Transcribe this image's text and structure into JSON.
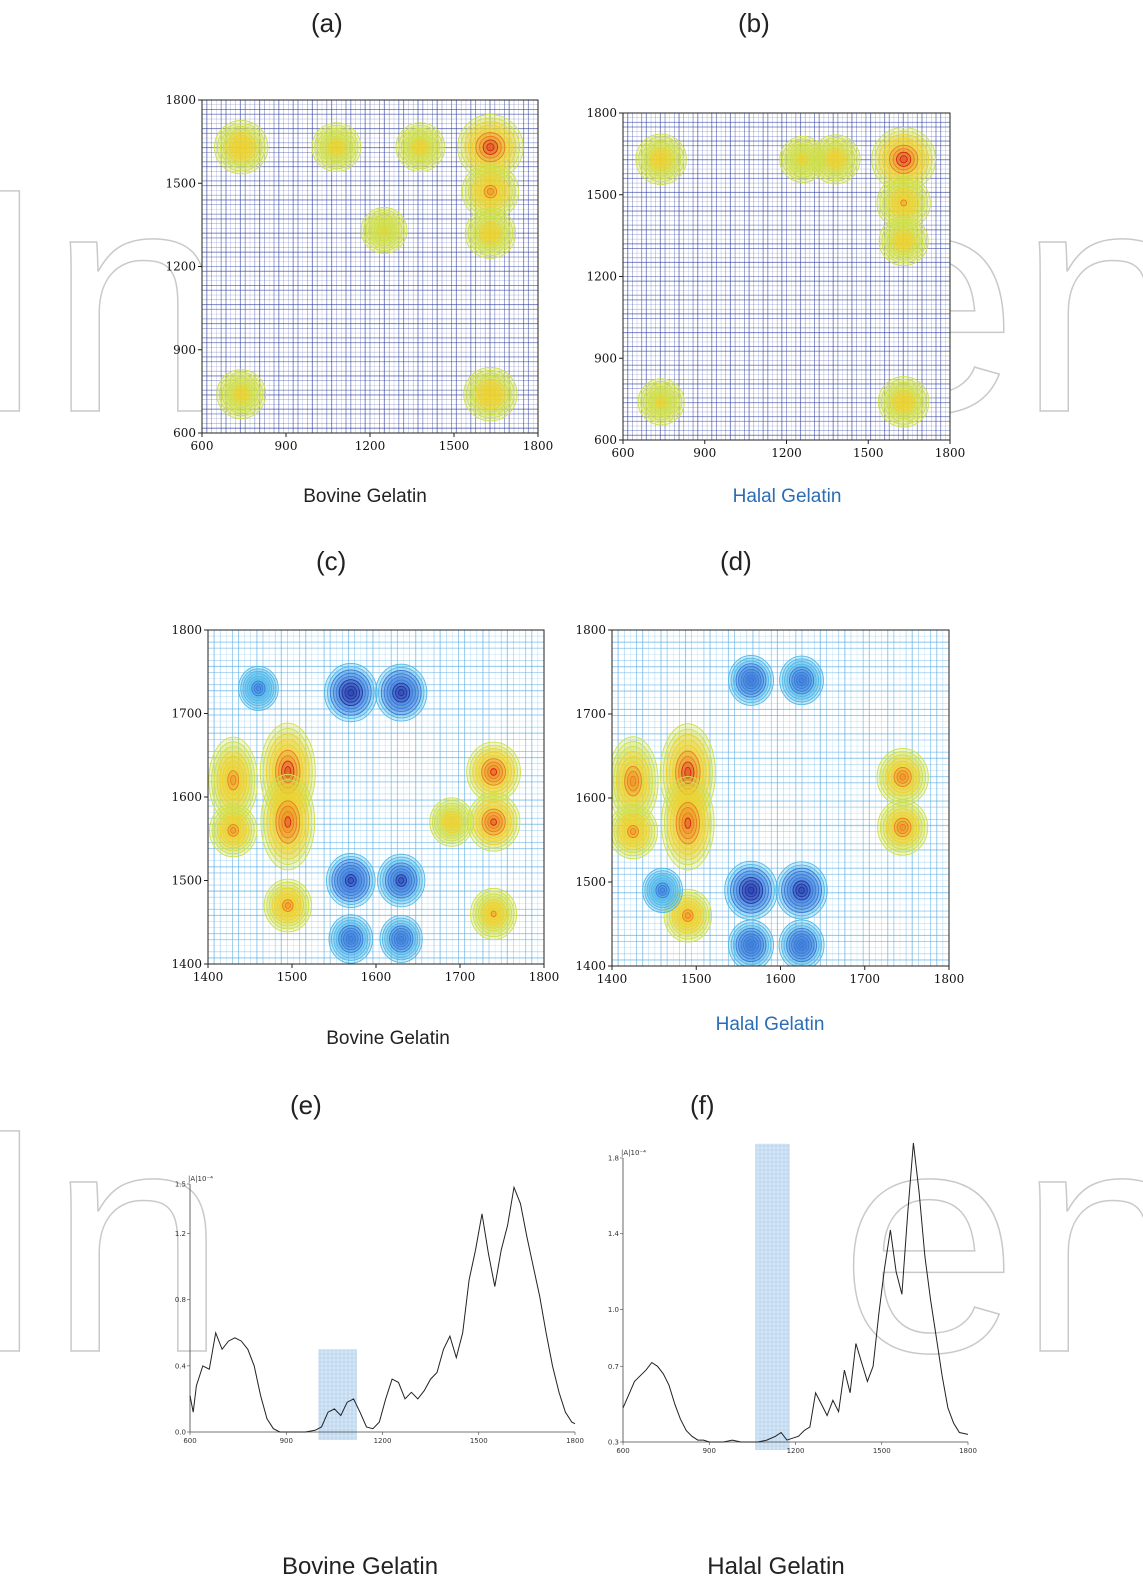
{
  "panels": {
    "a": {
      "letter": "(a)",
      "caption": "Bovine Gelatin"
    },
    "b": {
      "letter": "(b)",
      "caption": "Halal Gelatin"
    },
    "c": {
      "letter": "(c)",
      "caption": "Bovine Gelatin"
    },
    "d": {
      "letter": "(d)",
      "caption": "Halal Gelatin"
    },
    "e": {
      "letter": "(e)",
      "caption": "Bovine Gelatin"
    },
    "f": {
      "letter": "(f)",
      "caption": "Halal Gelatin"
    }
  },
  "chart_data": [
    {
      "id": "a",
      "type": "heatmap",
      "xlim": [
        600,
        1800
      ],
      "ylim": [
        600,
        1800
      ],
      "xticks": [
        600,
        900,
        1200,
        1500,
        1800
      ],
      "yticks": [
        600,
        900,
        1200,
        1500,
        1800
      ],
      "peaks": [
        [
          1630,
          1630,
          1.0
        ],
        [
          1630,
          1470,
          0.7
        ],
        [
          1630,
          740,
          0.6
        ],
        [
          740,
          1630,
          0.6
        ],
        [
          740,
          740,
          0.45
        ],
        [
          1080,
          1630,
          0.45
        ],
        [
          1380,
          1630,
          0.45
        ],
        [
          1630,
          1320,
          0.5
        ],
        [
          1250,
          1330,
          0.35
        ]
      ]
    },
    {
      "id": "b",
      "type": "heatmap",
      "xlim": [
        600,
        1800
      ],
      "ylim": [
        600,
        1800
      ],
      "xticks": [
        600,
        900,
        1200,
        1500,
        1800
      ],
      "yticks": [
        600,
        900,
        1200,
        1500,
        1800
      ],
      "peaks": [
        [
          1630,
          1630,
          1.0
        ],
        [
          1630,
          1470,
          0.65
        ],
        [
          1630,
          1330,
          0.5
        ],
        [
          1630,
          740,
          0.55
        ],
        [
          740,
          1630,
          0.55
        ],
        [
          740,
          740,
          0.4
        ],
        [
          1380,
          1630,
          0.5
        ],
        [
          1260,
          1630,
          0.4
        ]
      ]
    },
    {
      "id": "c",
      "type": "heatmap",
      "xlim": [
        1400,
        1800
      ],
      "ylim": [
        1400,
        1800
      ],
      "xticks": [
        1400,
        1500,
        1600,
        1700,
        1800
      ],
      "yticks": [
        1400,
        1500,
        1600,
        1700,
        1800
      ],
      "peaks": [
        [
          1495,
          1630,
          1.0
        ],
        [
          1495,
          1570,
          0.95
        ],
        [
          1740,
          1630,
          0.95
        ],
        [
          1740,
          1570,
          0.9
        ],
        [
          1430,
          1620,
          0.75
        ],
        [
          1430,
          1560,
          0.7
        ],
        [
          1495,
          1470,
          0.7
        ],
        [
          1740,
          1460,
          0.65
        ],
        [
          1690,
          1570,
          0.55
        ],
        [
          1570,
          1725,
          -0.9
        ],
        [
          1630,
          1725,
          -0.85
        ],
        [
          1570,
          1500,
          -0.75
        ],
        [
          1630,
          1500,
          -0.7
        ],
        [
          1570,
          1430,
          -0.55
        ],
        [
          1630,
          1430,
          -0.5
        ],
        [
          1460,
          1730,
          -0.4
        ]
      ]
    },
    {
      "id": "d",
      "type": "heatmap",
      "xlim": [
        1400,
        1800
      ],
      "ylim": [
        1400,
        1800
      ],
      "xticks": [
        1400,
        1500,
        1600,
        1700,
        1800
      ],
      "yticks": [
        1400,
        1500,
        1600,
        1700,
        1800
      ],
      "peaks": [
        [
          1490,
          1630,
          1.0
        ],
        [
          1490,
          1570,
          0.9
        ],
        [
          1425,
          1620,
          0.8
        ],
        [
          1425,
          1560,
          0.75
        ],
        [
          1745,
          1625,
          0.85
        ],
        [
          1745,
          1565,
          0.8
        ],
        [
          1490,
          1460,
          0.7
        ],
        [
          1565,
          1490,
          -0.9
        ],
        [
          1625,
          1490,
          -0.85
        ],
        [
          1565,
          1425,
          -0.6
        ],
        [
          1625,
          1425,
          -0.6
        ],
        [
          1565,
          1740,
          -0.6
        ],
        [
          1625,
          1740,
          -0.55
        ],
        [
          1460,
          1490,
          -0.4
        ]
      ]
    },
    {
      "id": "e",
      "type": "line",
      "ylabel": "|A|10⁻⁴",
      "xlim": [
        600,
        1800
      ],
      "ylim": [
        0,
        1.5
      ],
      "xticks": [
        600,
        900,
        1200,
        1500,
        1800
      ],
      "yticks": [
        0.0,
        0.4,
        0.8,
        1.2,
        1.5
      ],
      "xtick_labels": [
        "600",
        "900",
        "1200",
        "1500",
        "1800"
      ],
      "ytick_labels": [
        "0.0",
        "0.4",
        "0.8",
        "1.2",
        "1.5"
      ],
      "highlight": {
        "x": [
          1000,
          1120
        ],
        "y": [
          0,
          0.5
        ]
      },
      "x": [
        600,
        610,
        620,
        640,
        660,
        680,
        700,
        720,
        740,
        760,
        780,
        800,
        820,
        840,
        860,
        880,
        900,
        930,
        960,
        990,
        1010,
        1030,
        1050,
        1070,
        1090,
        1110,
        1130,
        1150,
        1170,
        1190,
        1210,
        1230,
        1250,
        1270,
        1290,
        1310,
        1330,
        1350,
        1370,
        1390,
        1410,
        1430,
        1450,
        1470,
        1490,
        1510,
        1530,
        1550,
        1570,
        1590,
        1610,
        1630,
        1650,
        1670,
        1690,
        1710,
        1730,
        1750,
        1770,
        1790,
        1800
      ],
      "y": [
        0.22,
        0.12,
        0.28,
        0.4,
        0.38,
        0.6,
        0.5,
        0.55,
        0.57,
        0.55,
        0.5,
        0.4,
        0.22,
        0.08,
        0.02,
        0.0,
        0.0,
        0.0,
        0.0,
        0.01,
        0.03,
        0.12,
        0.14,
        0.1,
        0.18,
        0.2,
        0.12,
        0.03,
        0.02,
        0.06,
        0.2,
        0.32,
        0.3,
        0.2,
        0.24,
        0.2,
        0.25,
        0.32,
        0.36,
        0.5,
        0.58,
        0.45,
        0.6,
        0.92,
        1.1,
        1.32,
        1.08,
        0.88,
        1.1,
        1.25,
        1.48,
        1.38,
        1.18,
        1.0,
        0.82,
        0.6,
        0.4,
        0.24,
        0.12,
        0.06,
        0.05
      ]
    },
    {
      "id": "f",
      "type": "line",
      "ylabel": "|A|10⁻⁴",
      "xlim": [
        600,
        1800
      ],
      "ylim": [
        0.3,
        1.8
      ],
      "xticks": [
        600,
        900,
        1200,
        1500,
        1800
      ],
      "yticks": [
        0.3,
        0.7,
        1.0,
        1.4,
        1.8
      ],
      "xtick_labels": [
        "600",
        "900",
        "1200",
        "1500",
        "1800"
      ],
      "ytick_labels": [
        "0.3",
        "0.7",
        "1.0",
        "1.4",
        "1.8"
      ],
      "highlight": {
        "x": [
          1060,
          1180
        ],
        "y": [
          0.3,
          1.9
        ]
      },
      "x": [
        600,
        620,
        640,
        660,
        680,
        700,
        720,
        740,
        760,
        780,
        800,
        820,
        840,
        860,
        880,
        900,
        920,
        950,
        980,
        1010,
        1040,
        1070,
        1100,
        1130,
        1150,
        1170,
        1190,
        1210,
        1230,
        1250,
        1270,
        1290,
        1310,
        1330,
        1350,
        1370,
        1390,
        1410,
        1430,
        1450,
        1470,
        1490,
        1510,
        1530,
        1550,
        1570,
        1590,
        1610,
        1630,
        1650,
        1670,
        1690,
        1710,
        1730,
        1750,
        1770,
        1800
      ],
      "y": [
        0.48,
        0.55,
        0.62,
        0.65,
        0.68,
        0.72,
        0.7,
        0.66,
        0.6,
        0.5,
        0.42,
        0.36,
        0.33,
        0.31,
        0.31,
        0.3,
        0.3,
        0.3,
        0.31,
        0.3,
        0.3,
        0.3,
        0.31,
        0.33,
        0.35,
        0.31,
        0.32,
        0.33,
        0.36,
        0.38,
        0.56,
        0.5,
        0.44,
        0.52,
        0.46,
        0.68,
        0.56,
        0.82,
        0.72,
        0.62,
        0.7,
        0.98,
        1.22,
        1.42,
        1.2,
        1.08,
        1.5,
        1.88,
        1.62,
        1.28,
        1.05,
        0.85,
        0.65,
        0.48,
        0.4,
        0.35,
        0.34
      ]
    }
  ]
}
